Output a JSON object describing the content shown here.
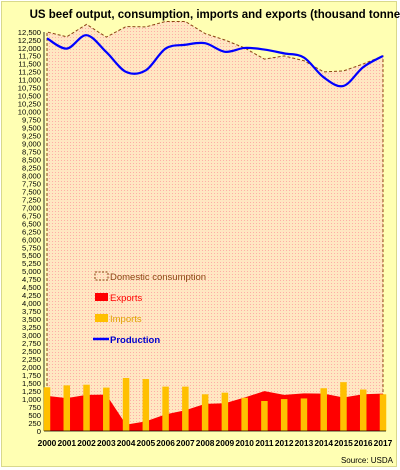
{
  "chart_data": {
    "type": "bar+line+area",
    "title": "US beef output, consumption, imports and exports (thousand tonnes)",
    "source": "Source: USDA",
    "xlabel": "",
    "ylabel": "",
    "ylim": [
      0,
      12500
    ],
    "ytick_step": 250,
    "grid": false,
    "legend_position": "middle-left",
    "categories": [
      "2000",
      "2001",
      "2002",
      "2003",
      "2004",
      "2005",
      "2006",
      "2007",
      "2008",
      "2009",
      "2010",
      "2011",
      "2012",
      "2013",
      "2014",
      "2015",
      "2016",
      "2017"
    ],
    "series": [
      {
        "name": "Domestic consumption",
        "type": "area",
        "color": "#c0504d",
        "values": [
          12500,
          12350,
          12740,
          12340,
          12670,
          12660,
          12830,
          12830,
          12450,
          12250,
          12000,
          11650,
          11750,
          11600,
          11250,
          11280,
          11500,
          11750
        ]
      },
      {
        "name": "Exports",
        "type": "area",
        "color": "#ff0000",
        "values": [
          1100,
          1030,
          1130,
          1140,
          200,
          300,
          520,
          650,
          850,
          870,
          1050,
          1250,
          1130,
          1180,
          1170,
          1050,
          1150,
          1170
        ]
      },
      {
        "name": "Imports",
        "type": "bar",
        "color": "#ffc000",
        "values": [
          1370,
          1430,
          1450,
          1360,
          1660,
          1630,
          1390,
          1390,
          1150,
          1200,
          1040,
          940,
          1000,
          1020,
          1340,
          1530,
          1300,
          1150
        ]
      },
      {
        "name": "Production",
        "type": "line",
        "color": "#0000ff",
        "values": [
          12300,
          11980,
          12400,
          11870,
          11250,
          11300,
          11980,
          12100,
          12150,
          11880,
          12000,
          11950,
          11830,
          11700,
          11080,
          10810,
          11400,
          11750
        ]
      }
    ]
  }
}
